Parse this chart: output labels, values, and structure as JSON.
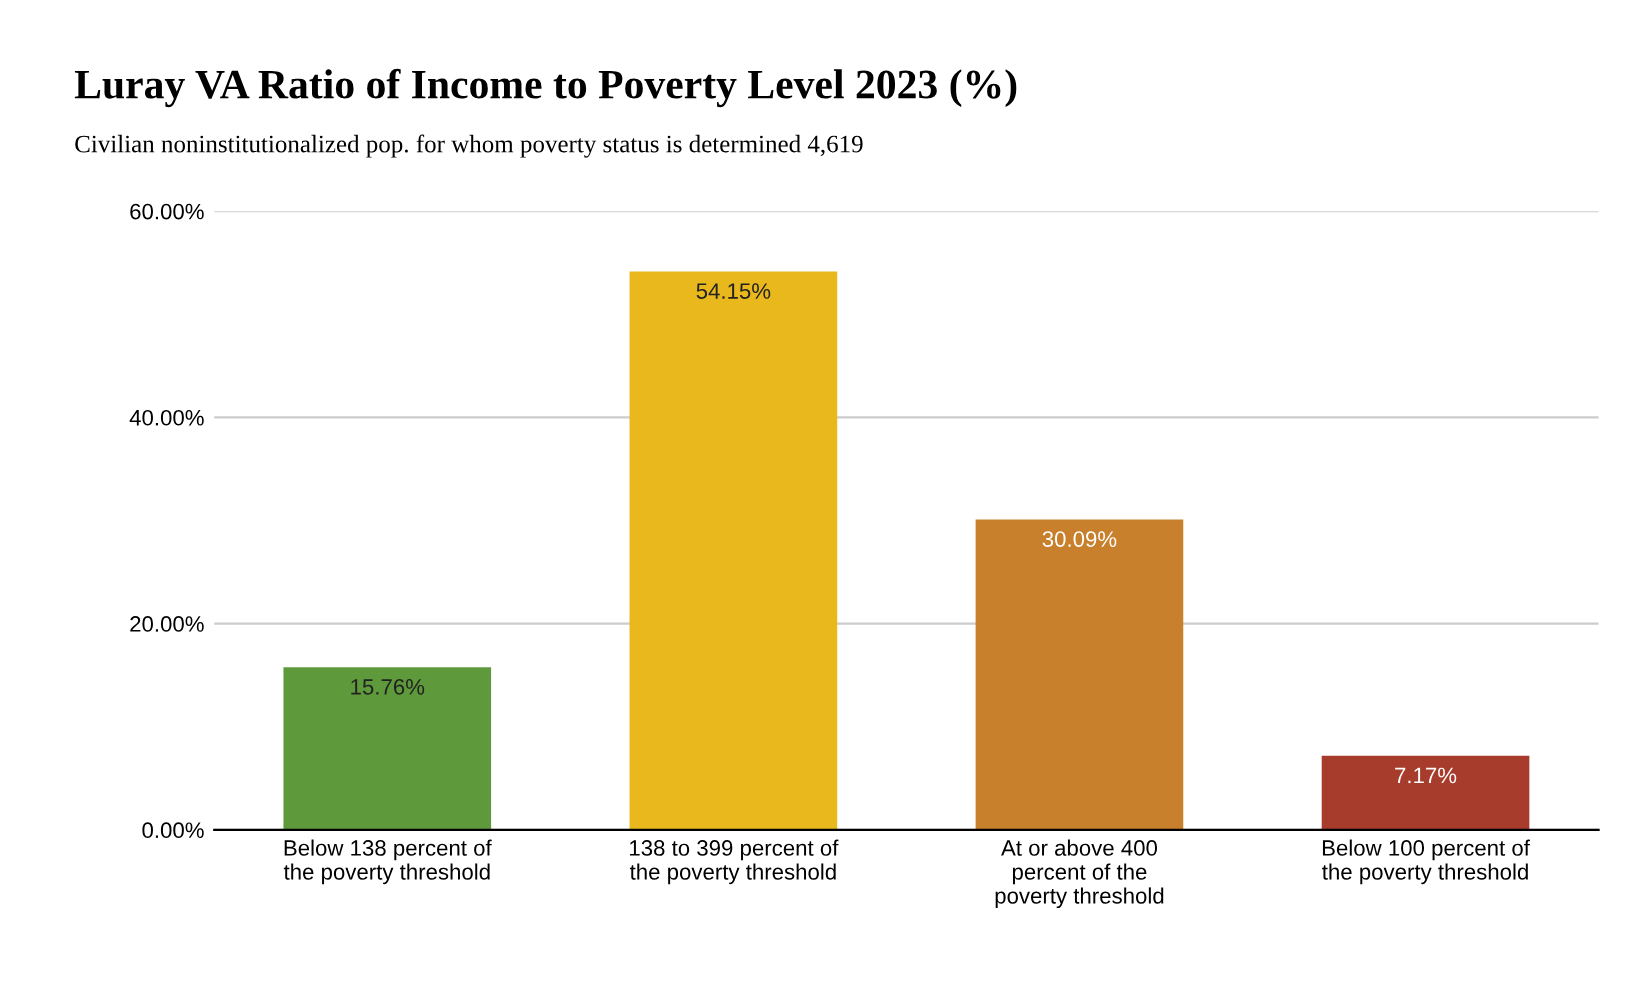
{
  "chart_data": {
    "type": "bar",
    "title": "Luray VA Ratio of Income to Poverty Level 2023 (%)",
    "subtitle": "Civilian noninstitutionalized pop. for whom poverty status is determined 4,619",
    "categories": [
      "Below 138 percent of the poverty threshold",
      "138 to 399 percent of the poverty threshold",
      "At or above 400 percent of the poverty threshold",
      "Below 100 percent of the poverty threshold"
    ],
    "values": [
      15.76,
      54.15,
      30.09,
      7.17
    ],
    "colors": [
      "#5e9a3c",
      "#e8b81c",
      "#c8802c",
      "#a83c2c"
    ],
    "value_labels": [
      "15.76%",
      "54.15%",
      "30.09%",
      "7.17%"
    ],
    "ylim": [
      0,
      60
    ],
    "yticks": [
      {
        "value": 0,
        "label": "0.00%"
      },
      {
        "value": 20,
        "label": "20.00%"
      },
      {
        "value": 40,
        "label": "40.00%"
      },
      {
        "value": 60,
        "label": "60.00%"
      }
    ],
    "grid": "y",
    "legend": false
  }
}
